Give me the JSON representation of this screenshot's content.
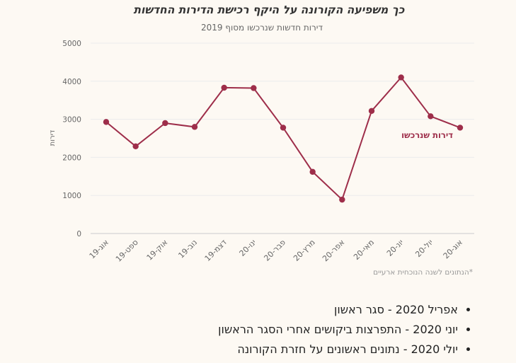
{
  "chart_data": {
    "type": "line",
    "title": "כך משפיעה הקורונה על היקף רכישת הדירות החדשות",
    "subtitle": "דירות חדשות שנרכשו מסוף 2019",
    "ylabel": "דירות",
    "ylim": [
      0,
      5000
    ],
    "yticks": [
      0,
      1000,
      2000,
      3000,
      4000,
      5000
    ],
    "categories": [
      "אוג-19",
      "ספט-19",
      "אוק-19",
      "נוב-19",
      "דצמ-19",
      "ינו-20",
      "פבר-20",
      "מרץ-20",
      "אפר-20",
      "מאי-20",
      "יונ-20",
      "יול-20",
      "אוג-20"
    ],
    "series": [
      {
        "name": "דירות שנרכשו",
        "values": [
          2930,
          2290,
          2900,
          2800,
          3830,
          3820,
          2780,
          1620,
          890,
          3220,
          4100,
          3080,
          2780
        ]
      }
    ],
    "line_color": "#9e2e4a",
    "grid": true,
    "note": "הנתונים לשנה הנוכחית ארעיים*"
  },
  "notes": [
    "אפריל 2020 - סגר ראשון",
    "יוני 2020 - התפרצות ביקושים אחרי הסגר הראשון",
    "יולי 2020 - נתונים ראשונים על חזרת הקורונה"
  ]
}
